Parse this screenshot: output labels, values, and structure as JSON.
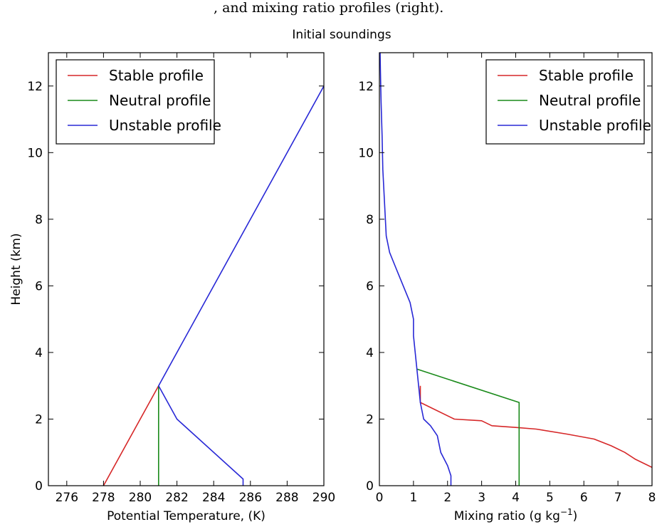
{
  "header_text": ", and mixing ratio profiles (right).",
  "suptitle": "Initial soundings",
  "chart_data": [
    {
      "type": "line",
      "xlabel": "Potential Temperature, (K)",
      "ylabel": "Height (km)",
      "xlim": [
        275,
        290
      ],
      "ylim": [
        0,
        13
      ],
      "xticks": [
        276,
        278,
        280,
        282,
        284,
        286,
        288,
        290
      ],
      "yticks": [
        0,
        2,
        4,
        6,
        8,
        10,
        12
      ],
      "legend": "top-left",
      "grid": false,
      "series": [
        {
          "name": "Stable profile",
          "color": "#d62728",
          "x": [
            278.0,
            278.2,
            281.0
          ],
          "y": [
            0.0,
            0.2,
            3.0
          ]
        },
        {
          "name": "Neutral profile",
          "color": "#1a8a1a",
          "x": [
            281.0,
            281.0
          ],
          "y": [
            0.0,
            3.0
          ]
        },
        {
          "name": "Unstable profile",
          "color": "#2828d6",
          "x": [
            285.6,
            285.6,
            282.0,
            281.0,
            290.0
          ],
          "y": [
            0.0,
            0.2,
            2.0,
            3.0,
            12.0
          ]
        }
      ]
    },
    {
      "type": "line",
      "xlabel": "Mixing ratio (g kg",
      "xlabel_sup": "−1",
      "xlabel_end": ")",
      "xlim": [
        0,
        8
      ],
      "ylim": [
        0,
        13
      ],
      "xticks": [
        0,
        1,
        2,
        3,
        4,
        5,
        6,
        7,
        8
      ],
      "yticks": [
        0,
        2,
        4,
        6,
        8,
        10,
        12
      ],
      "legend": "top-right",
      "grid": false,
      "series": [
        {
          "name": "Stable profile",
          "color": "#d62728",
          "x": [
            8.0,
            7.5,
            7.2,
            6.8,
            6.3,
            5.5,
            4.6,
            4.0,
            3.3,
            3.0,
            2.2,
            1.2,
            1.2
          ],
          "y": [
            0.55,
            0.8,
            1.0,
            1.2,
            1.4,
            1.55,
            1.7,
            1.75,
            1.8,
            1.95,
            2.0,
            2.5,
            3.0
          ]
        },
        {
          "name": "Neutral profile",
          "color": "#1a8a1a",
          "x": [
            4.1,
            4.1,
            1.1
          ],
          "y": [
            0.0,
            2.5,
            3.5
          ]
        },
        {
          "name": "Unstable profile",
          "color": "#2828d6",
          "x": [
            2.1,
            2.1,
            2.0,
            1.8,
            1.7,
            1.5,
            1.3,
            1.2,
            1.15,
            1.1,
            1.05,
            1.0,
            1.0,
            0.9,
            0.7,
            0.5,
            0.3,
            0.2,
            0.15,
            0.1,
            0.08,
            0.05,
            0.03,
            0.02
          ],
          "y": [
            0.0,
            0.3,
            0.6,
            1.0,
            1.5,
            1.8,
            2.0,
            2.5,
            3.0,
            3.5,
            4.0,
            4.5,
            5.0,
            5.5,
            6.0,
            6.5,
            7.0,
            7.5,
            8.5,
            9.5,
            10.5,
            11.5,
            12.5,
            13.0
          ]
        }
      ]
    }
  ]
}
